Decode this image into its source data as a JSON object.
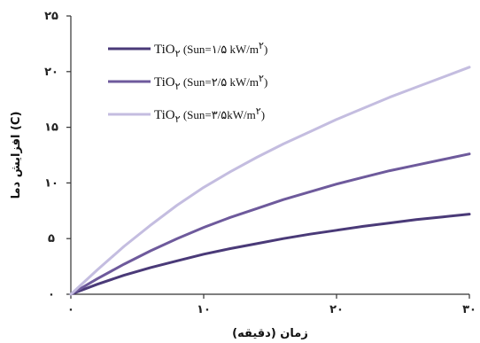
{
  "chart_data": {
    "type": "line",
    "xlabel": "زمان (دقیقه)",
    "ylabel": "افزایش دما (C)",
    "xlim": [
      0,
      30
    ],
    "ylim": [
      0,
      25
    ],
    "x_ticks": [
      0,
      10,
      20,
      30
    ],
    "y_ticks": [
      0,
      5,
      10,
      15,
      20,
      25
    ],
    "x_tick_labels": [
      "۰",
      "۱۰",
      "۲۰",
      "۳۰"
    ],
    "y_tick_labels": [
      "۰",
      "۵",
      "۱۰",
      "۱۵",
      "۲۰",
      "۲۵"
    ],
    "grid": false,
    "legend_position": "top-left",
    "series": [
      {
        "name": "Sun=۱/۵ kW/m۲",
        "legend_formula": "TiO",
        "legend_sub": "۲",
        "legend_text": " (Sun=۱/۵ kW/m",
        "legend_sup": "۲",
        "legend_close": ")",
        "color": "#4a3a78",
        "x": [
          0,
          2,
          4,
          6,
          8,
          10,
          12,
          14,
          16,
          18,
          20,
          22,
          24,
          26,
          28,
          30
        ],
        "values": [
          0,
          0.9,
          1.7,
          2.4,
          3.0,
          3.6,
          4.1,
          4.55,
          5.0,
          5.4,
          5.75,
          6.1,
          6.4,
          6.7,
          6.95,
          7.2
        ]
      },
      {
        "name": "Sun=۲/۵ kW/m۲",
        "legend_formula": "TiO",
        "legend_sub": "۲",
        "legend_text": " (Sun=۲/۵ kW/m",
        "legend_sup": "۲",
        "legend_close": ")",
        "color": "#6e5a9c",
        "x": [
          0,
          2,
          4,
          6,
          8,
          10,
          12,
          14,
          16,
          18,
          20,
          22,
          24,
          26,
          28,
          30
        ],
        "values": [
          0,
          1.4,
          2.7,
          3.9,
          5.0,
          6.0,
          6.9,
          7.7,
          8.5,
          9.2,
          9.9,
          10.5,
          11.1,
          11.6,
          12.1,
          12.6
        ]
      },
      {
        "name": "Sun=۳/۵ kW/m۲",
        "legend_formula": "TiO",
        "legend_sub": "۲",
        "legend_text": " (Sun=۳/۵kW/m",
        "legend_sup": "۲",
        "legend_close": ")",
        "color": "#c4bde0",
        "x": [
          0,
          2,
          4,
          6,
          8,
          10,
          12,
          14,
          16,
          18,
          20,
          22,
          24,
          26,
          28,
          30
        ],
        "values": [
          0,
          2.2,
          4.3,
          6.2,
          8.0,
          9.6,
          11.0,
          12.3,
          13.5,
          14.6,
          15.7,
          16.7,
          17.7,
          18.6,
          19.5,
          20.4
        ]
      }
    ]
  }
}
